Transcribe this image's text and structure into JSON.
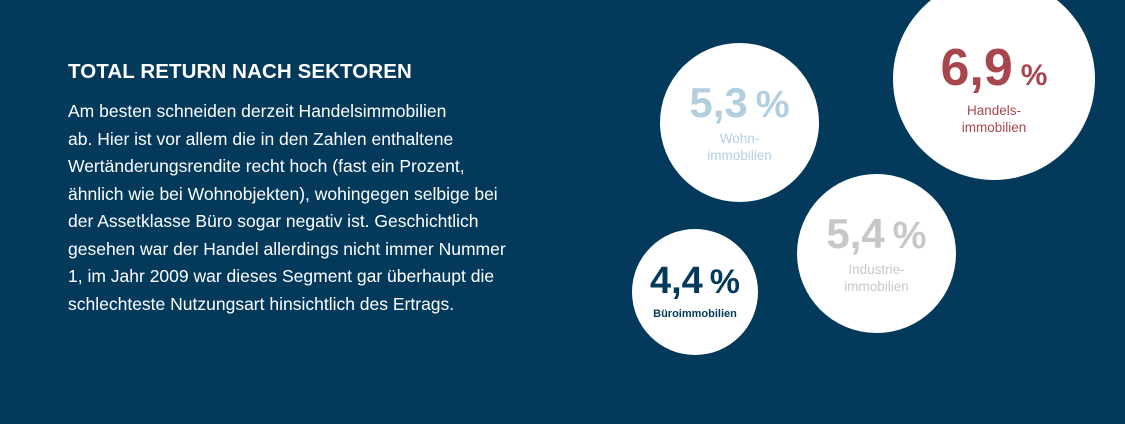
{
  "heading": "TOTAL RETURN NACH SEKTOREN",
  "paragraph": "Am besten schneiden derzeit Handelsimmobilien ab. Hier ist vor allem die in den Zahlen enthaltene Wertänderungsrendite recht hoch (fast ein Prozent, ähnlich wie bei Wohnobjekten), wohingegen selbige bei der Assetklasse Büro sogar negativ ist. Geschichtlich gesehen war der Handel allerdings nicht immer Nummer 1, im Jahr 2009 war dieses Segment gar überhaupt die schlechteste Nutzungsart hinsichtlich des Ertrags.",
  "paragraph_lines": [
    "Am besten schneiden derzeit Handelsimmobilien",
    "ab. Hier ist vor allem die in den Zahlen enthaltene",
    "Wertänderungsrendite recht hoch (fast ein Prozent,",
    "ähnlich wie bei Wohnobjekten), wohingegen selbige bei",
    "der Assetklasse Büro sogar negativ ist. Geschichtlich",
    "gesehen war der Handel allerdings nicht immer Nummer",
    "1, im Jahr 2009 war dieses Segment gar überhaupt die",
    "schlechteste Nutzungsart hinsichtlich des Ertrags."
  ],
  "bubbles": {
    "wohn": {
      "value": "5,3",
      "unit": "%",
      "label_line1": "Wohn-",
      "label_line2": "immobilien",
      "color": "#b3cedf"
    },
    "handel": {
      "value": "6,9",
      "unit": "%",
      "label_line1": "Handels-",
      "label_line2": "immobilien",
      "color": "#a7474d"
    },
    "industrie": {
      "value": "5,4",
      "unit": "%",
      "label_line1": "Industrie-",
      "label_line2": "immobilien",
      "color": "#c7c7c7"
    },
    "buero": {
      "value": "4,4",
      "unit": "%",
      "label_line1": "Büroimmobilien",
      "color": "#033a5c"
    }
  },
  "colors": {
    "background": "#033a5c",
    "bubble_fill": "#ffffff",
    "text": "#ffffff"
  }
}
